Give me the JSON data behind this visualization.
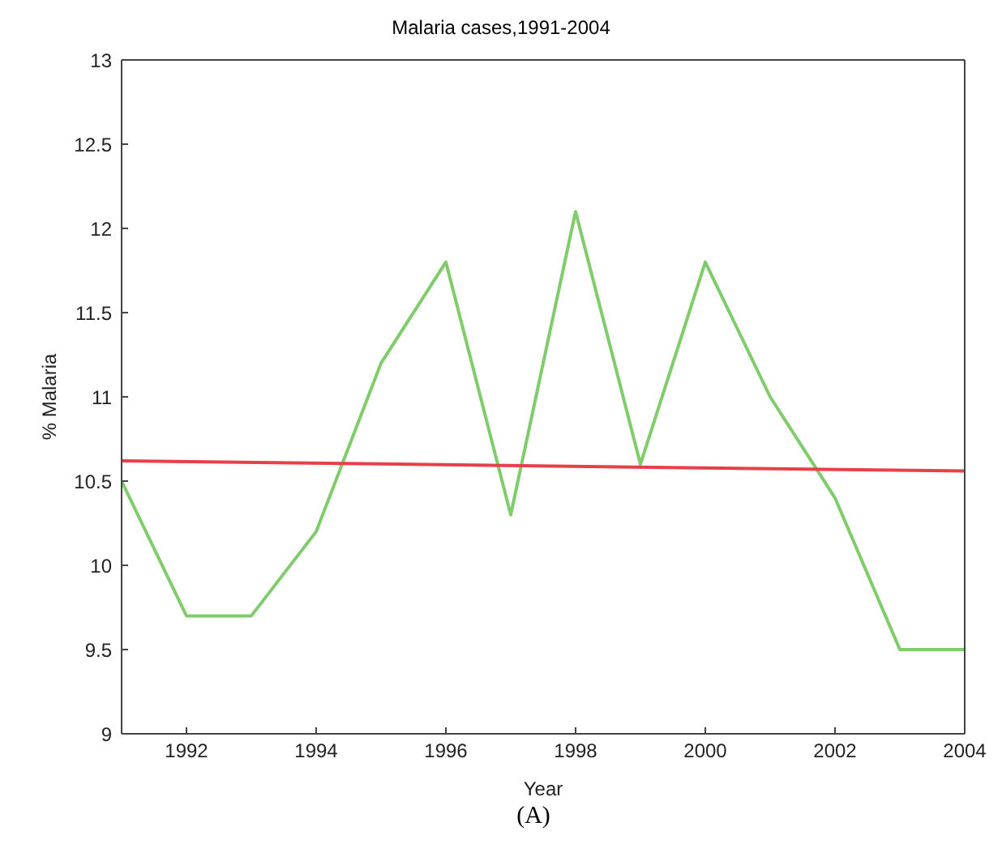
{
  "chart_data": {
    "type": "line",
    "title": "Malaria cases,1991-2004",
    "xlabel": "Year",
    "ylabel": "% Malaria",
    "x": [
      1991,
      1992,
      1993,
      1994,
      1995,
      1996,
      1997,
      1998,
      1999,
      2000,
      2001,
      2002,
      2003,
      2004
    ],
    "series": [
      {
        "color": "#7fcc6a",
        "values": [
          10.5,
          9.7,
          9.7,
          10.2,
          11.2,
          11.8,
          10.3,
          12.1,
          10.6,
          11.8,
          11.0,
          10.4,
          9.5,
          9.5
        ]
      },
      {
        "type": "line",
        "color": "#e8404a",
        "x": [
          1991,
          2004
        ],
        "values": [
          10.62,
          10.56
        ]
      }
    ],
    "xlim": [
      1991,
      2004
    ],
    "xticks": [
      1992,
      1994,
      1996,
      1998,
      2000,
      2002,
      2004
    ],
    "ylim": [
      9,
      13
    ],
    "yticks": [
      9,
      9.5,
      10,
      10.5,
      11,
      11.5,
      12,
      12.5,
      13
    ],
    "grid": false,
    "legend": false,
    "marker": "none",
    "line_style": "solid",
    "annotations": [
      "(A)"
    ]
  }
}
